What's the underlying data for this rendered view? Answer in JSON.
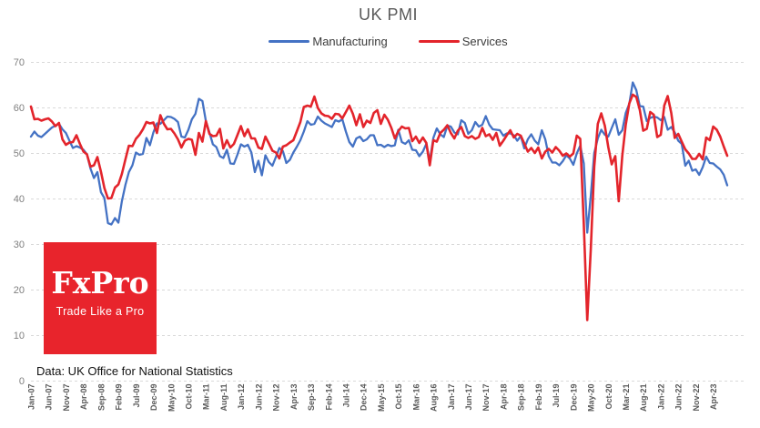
{
  "chart": {
    "title": "UK PMI",
    "source_note": "Data: UK Office for National Statistics"
  },
  "logo": {
    "name": "FxPro",
    "tagline": "Trade Like a Pro",
    "background_color": "#E8242C"
  },
  "colors": {
    "manufacturing_line": "#4472C4",
    "services_line": "#E3242B",
    "gridline": "#D9D9D9",
    "title_text": "#595959",
    "y_axis_text": "#7F7F7F",
    "x_axis_text": "#595959"
  },
  "chart_data": {
    "type": "line",
    "title": "UK PMI",
    "xlabel": "",
    "ylabel": "",
    "ylim": [
      0,
      70
    ],
    "y_ticks": [
      0,
      10,
      20,
      30,
      40,
      50,
      60,
      70
    ],
    "grid": "horizontal-dashed",
    "legend_position": "top-center",
    "x_start": "Jan-07",
    "x_end": "Aug-23",
    "x_frequency": "monthly",
    "x_tick_every": 5,
    "x_tick_labels": [
      "Jan-07",
      "Jun-07",
      "Nov-07",
      "Apr-08",
      "Sep-08",
      "Feb-09",
      "Jul-09",
      "Dec-09",
      "May-10",
      "Oct-10",
      "Mar-11",
      "Aug-11",
      "Jan-12",
      "Jun-12",
      "Nov-12",
      "Apr-13",
      "Sep-13",
      "Feb-14",
      "Jul-14",
      "Dec-14",
      "May-15",
      "Oct-15",
      "Mar-16",
      "Aug-16",
      "Jan-17",
      "Jun-17",
      "Nov-17",
      "Apr-18",
      "Sep-18",
      "Feb-19",
      "Jul-19",
      "Dec-19",
      "May-20",
      "Oct-20",
      "Mar-21",
      "Aug-21",
      "Jan-22",
      "Jun-22",
      "Nov-22",
      "Apr-23"
    ],
    "series": [
      {
        "name": "Manufacturing",
        "color": "#4472C4",
        "values": [
          53.7,
          54.8,
          53.9,
          53.6,
          54.3,
          55.0,
          55.7,
          56.1,
          56.5,
          55.3,
          54.5,
          52.8,
          51.2,
          51.6,
          51.3,
          50.8,
          49.8,
          46.7,
          44.6,
          45.9,
          41.5,
          40.2,
          34.7,
          34.4,
          35.8,
          34.8,
          39.5,
          43.1,
          45.9,
          47.4,
          50.2,
          49.7,
          49.9,
          53.4,
          51.8,
          54.6,
          56.6,
          56.5,
          57.3,
          58.1,
          58.0,
          57.6,
          56.9,
          53.7,
          53.5,
          55.2,
          57.5,
          58.7,
          62.0,
          61.5,
          57.1,
          54.6,
          52.0,
          51.4,
          49.4,
          49.0,
          50.8,
          47.8,
          47.7,
          49.7,
          52.0,
          51.5,
          51.9,
          50.2,
          45.9,
          48.4,
          45.2,
          49.6,
          48.1,
          47.3,
          49.2,
          51.2,
          50.5,
          47.9,
          48.6,
          50.2,
          51.5,
          52.9,
          54.8,
          57.1,
          56.3,
          56.5,
          58.1,
          57.2,
          56.6,
          56.2,
          55.8,
          57.3,
          57.0,
          57.5,
          54.8,
          52.5,
          51.5,
          53.3,
          53.7,
          52.7,
          53.1,
          54.0,
          54.0,
          51.8,
          51.9,
          51.4,
          51.9,
          51.6,
          51.8,
          55.2,
          52.5,
          52.1,
          52.9,
          50.8,
          50.7,
          49.4,
          50.4,
          52.1,
          48.3,
          53.4,
          55.5,
          54.2,
          53.6,
          56.1,
          55.9,
          54.6,
          54.2,
          57.3,
          56.7,
          54.3,
          55.1,
          56.9,
          55.9,
          56.3,
          58.2,
          56.3,
          55.3,
          55.2,
          55.1,
          53.9,
          54.4,
          54.4,
          54.0,
          52.8,
          53.8,
          51.1,
          53.1,
          54.2,
          52.8,
          52.0,
          55.1,
          53.1,
          49.4,
          48.0,
          48.0,
          47.4,
          48.3,
          49.6,
          48.9,
          47.5,
          50.0,
          51.7,
          47.8,
          32.6,
          40.7,
          50.1,
          53.3,
          55.2,
          54.1,
          53.7,
          55.6,
          57.5,
          54.1,
          55.1,
          58.9,
          60.9,
          65.6,
          63.9,
          60.4,
          60.3,
          57.1,
          57.8,
          58.1,
          57.9,
          57.3,
          58.0,
          55.2,
          55.8,
          54.6,
          52.8,
          52.1,
          47.3,
          48.4,
          46.2,
          46.5,
          45.3,
          47.0,
          49.3,
          47.9,
          47.8,
          47.1,
          46.5,
          45.3,
          43.0
        ]
      },
      {
        "name": "Services",
        "color": "#E3242B",
        "values": [
          60.3,
          57.5,
          57.6,
          57.2,
          57.5,
          57.7,
          57.0,
          56.0,
          56.7,
          53.1,
          51.9,
          52.4,
          52.5,
          54.0,
          52.1,
          50.4,
          49.8,
          47.1,
          47.4,
          49.2,
          46.0,
          42.4,
          40.1,
          40.2,
          42.5,
          43.2,
          45.5,
          48.7,
          51.7,
          51.6,
          53.2,
          54.1,
          55.3,
          56.9,
          56.6,
          56.8,
          54.5,
          58.4,
          56.5,
          55.3,
          55.4,
          54.4,
          53.1,
          51.3,
          52.8,
          53.2,
          53.0,
          49.7,
          54.5,
          52.6,
          57.1,
          54.3,
          53.8,
          53.9,
          55.4,
          51.1,
          52.9,
          51.3,
          52.1,
          54.0,
          56.0,
          53.8,
          55.3,
          53.3,
          53.3,
          51.3,
          51.0,
          53.7,
          52.2,
          50.6,
          50.2,
          48.9,
          51.5,
          51.8,
          52.4,
          52.9,
          54.9,
          56.9,
          60.2,
          60.5,
          60.3,
          62.5,
          60.0,
          58.8,
          58.3,
          58.2,
          57.6,
          58.7,
          58.6,
          57.7,
          59.1,
          60.5,
          58.7,
          56.2,
          58.6,
          55.8,
          57.2,
          56.7,
          58.9,
          59.5,
          56.5,
          58.5,
          57.4,
          55.6,
          53.3,
          54.9,
          55.9,
          55.5,
          55.6,
          52.7,
          53.7,
          52.3,
          53.5,
          52.3,
          47.4,
          52.9,
          52.6,
          54.5,
          55.2,
          56.2,
          54.5,
          53.3,
          55.0,
          55.8,
          53.8,
          53.4,
          53.8,
          53.2,
          53.6,
          55.6,
          53.8,
          54.2,
          53.0,
          54.5,
          51.7,
          52.8,
          54.0,
          55.1,
          53.5,
          54.3,
          53.9,
          52.2,
          50.4,
          51.2,
          50.1,
          51.3,
          48.9,
          50.4,
          51.0,
          50.2,
          51.4,
          50.6,
          49.5,
          50.0,
          49.3,
          50.0,
          53.9,
          53.2,
          34.5,
          13.4,
          29.0,
          47.1,
          56.5,
          58.8,
          56.1,
          51.4,
          47.6,
          49.4,
          39.5,
          49.5,
          56.3,
          61.0,
          62.9,
          62.4,
          59.6,
          55.0,
          55.4,
          59.1,
          58.5,
          53.6,
          54.1,
          60.5,
          62.6,
          58.9,
          53.4,
          54.3,
          52.6,
          50.9,
          50.0,
          48.8,
          48.8,
          49.9,
          48.7,
          53.5,
          52.9,
          55.9,
          55.2,
          53.7,
          51.5,
          49.5
        ]
      }
    ]
  }
}
